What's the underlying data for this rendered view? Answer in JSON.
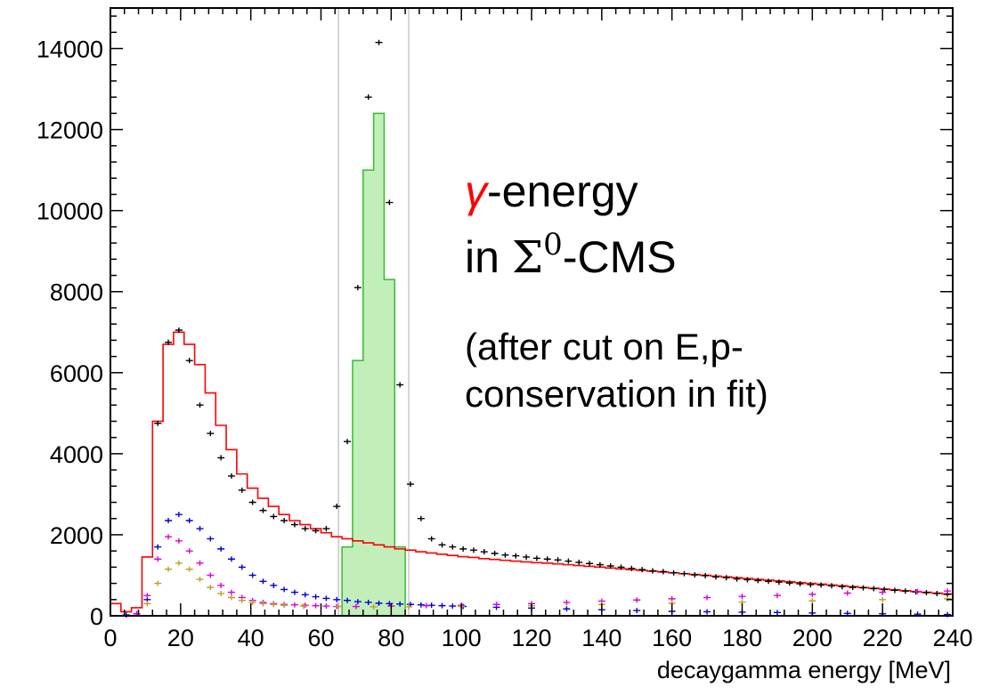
{
  "chart_data": {
    "type": "histogram",
    "xlabel": "decaygamma energy [MeV]",
    "ylabel": "",
    "xlim": [
      0,
      240
    ],
    "ylim": [
      0,
      15000
    ],
    "x_ticks": [
      0,
      20,
      40,
      60,
      80,
      100,
      120,
      140,
      160,
      180,
      200,
      220,
      240
    ],
    "y_ticks": [
      0,
      2000,
      4000,
      6000,
      8000,
      10000,
      12000,
      14000
    ],
    "y_tick_labels": [
      "0",
      "2000",
      "4000",
      "6000",
      "8000",
      "10000",
      "12000",
      "14000"
    ],
    "bin_width": 3,
    "grid": false,
    "cut_lines_x": [
      65,
      85
    ],
    "annotations": {
      "line1_symbol": "γ",
      "line1_text": "-energy",
      "line2_prefix": "in ",
      "line2_sigma": "Σ",
      "line2_sup": "0",
      "line2_suffix": "-CMS",
      "line3": "(after cut on E,p-",
      "line4": "conservation in fit)"
    },
    "colors": {
      "data_points": "#000000",
      "total": "#ff0000",
      "signal_fill": "#aee8a2",
      "signal_line": "#2fbf2f",
      "blue": "#0000dd",
      "magenta": "#dd00dd",
      "olive": "#bfa020",
      "cut_lines": "#c8c8c8",
      "annotation_symbol": "#ff0000"
    },
    "series": [
      {
        "name": "",
        "kind": "points",
        "color": "#000000",
        "x": [
          13.5,
          16.5,
          19.5,
          22.5,
          25.5,
          28.5,
          31.5,
          34.5,
          37.5,
          40.5,
          43.5,
          46.5,
          49.5,
          52.5,
          55.5,
          58.5,
          61.5,
          64.5,
          67.5,
          70.5,
          73.5,
          76.5,
          79.5,
          82.5,
          85.5,
          88.5,
          91.5,
          94.5,
          97.5,
          100.5,
          103.5,
          106.5,
          109.5,
          112.5,
          115.5,
          118.5,
          121.5,
          124.5,
          127.5,
          130.5,
          133.5,
          136.5,
          139.5,
          142.5,
          145.5,
          148.5,
          151.5,
          154.5,
          157.5,
          160.5,
          163.5,
          166.5,
          169.5,
          172.5,
          175.5,
          178.5,
          181.5,
          184.5,
          187.5,
          190.5,
          193.5,
          196.5,
          199.5,
          202.5,
          205.5,
          208.5,
          211.5,
          214.5,
          217.5,
          220.5,
          223.5,
          226.5,
          229.5,
          232.5,
          235.5,
          238.5
        ],
        "y": [
          4750,
          6750,
          7050,
          6300,
          5200,
          4500,
          3900,
          3450,
          3100,
          2800,
          2600,
          2450,
          2350,
          2250,
          2150,
          2100,
          2150,
          2700,
          4300,
          8100,
          12800,
          14150,
          10200,
          5700,
          3250,
          2400,
          1900,
          1750,
          1700,
          1650,
          1620,
          1580,
          1540,
          1500,
          1480,
          1450,
          1420,
          1400,
          1380,
          1350,
          1320,
          1290,
          1260,
          1230,
          1200,
          1170,
          1140,
          1110,
          1090,
          1060,
          1040,
          1010,
          990,
          960,
          940,
          910,
          890,
          870,
          850,
          830,
          810,
          790,
          770,
          760,
          740,
          720,
          700,
          690,
          670,
          650,
          630,
          610,
          590,
          570,
          550,
          530
        ]
      },
      {
        "name": "",
        "kind": "step",
        "color": "#ff0000",
        "x": [
          1.5,
          4.5,
          7.5,
          10.5,
          13.5,
          16.5,
          19.5,
          22.5,
          25.5,
          28.5,
          31.5,
          34.5,
          37.5,
          40.5,
          43.5,
          46.5,
          49.5,
          52.5,
          55.5,
          58.5,
          61.5,
          64.5,
          67.5,
          70.5,
          73.5,
          76.5,
          79.5,
          82.5,
          85.5,
          88.5,
          91.5,
          94.5,
          97.5,
          100.5,
          103.5,
          106.5,
          109.5,
          112.5,
          115.5,
          118.5,
          121.5,
          124.5,
          127.5,
          130.5,
          133.5,
          136.5,
          139.5,
          142.5,
          145.5,
          148.5,
          151.5,
          154.5,
          157.5,
          160.5,
          163.5,
          166.5,
          169.5,
          172.5,
          175.5,
          178.5,
          181.5,
          184.5,
          187.5,
          190.5,
          193.5,
          196.5,
          199.5,
          202.5,
          205.5,
          208.5,
          211.5,
          214.5,
          217.5,
          220.5,
          223.5,
          226.5,
          229.5,
          232.5,
          235.5,
          238.5
        ],
        "y": [
          300,
          100,
          200,
          1450,
          4800,
          6700,
          7000,
          6700,
          6200,
          5500,
          4700,
          4100,
          3500,
          3150,
          2900,
          2700,
          2500,
          2350,
          2250,
          2150,
          2050,
          1950,
          1900,
          1850,
          1800,
          1750,
          1700,
          1650,
          1620,
          1580,
          1550,
          1520,
          1490,
          1460,
          1440,
          1410,
          1390,
          1370,
          1350,
          1330,
          1310,
          1300,
          1280,
          1260,
          1240,
          1220,
          1200,
          1180,
          1160,
          1140,
          1120,
          1100,
          1080,
          1060,
          1040,
          1020,
          1000,
          980,
          960,
          940,
          920,
          900,
          880,
          860,
          840,
          820,
          800,
          780,
          760,
          740,
          720,
          700,
          680,
          660,
          640,
          620,
          600,
          580,
          560,
          540
        ]
      },
      {
        "name": "",
        "kind": "filled_step",
        "color": "#2fbf2f",
        "x": [
          64.5,
          67.5,
          70.5,
          73.5,
          76.5,
          79.5,
          82.5
        ],
        "y": [
          0,
          1700,
          6300,
          11000,
          12400,
          8300,
          1700
        ]
      },
      {
        "name": "",
        "kind": "points",
        "color": "#0000dd",
        "x": [
          4.5,
          7.5,
          10.5,
          13.5,
          16.5,
          19.5,
          22.5,
          25.5,
          28.5,
          31.5,
          34.5,
          37.5,
          40.5,
          43.5,
          46.5,
          49.5,
          52.5,
          55.5,
          58.5,
          61.5,
          64.5,
          67.5,
          70.5,
          73.5,
          76.5,
          79.5,
          82.5,
          85.5,
          88.5,
          91.5,
          94.5,
          97.5,
          100.5,
          110,
          120,
          130,
          140,
          150,
          160,
          170,
          180,
          190,
          200,
          210,
          220,
          230,
          238.5
        ],
        "y": [
          20,
          50,
          400,
          1700,
          2350,
          2500,
          2350,
          2150,
          1900,
          1650,
          1400,
          1200,
          1000,
          850,
          750,
          650,
          580,
          520,
          470,
          430,
          400,
          380,
          350,
          330,
          310,
          300,
          290,
          280,
          270,
          260,
          250,
          240,
          230,
          210,
          190,
          170,
          150,
          130,
          110,
          100,
          90,
          80,
          70,
          60,
          50,
          40,
          30
        ]
      },
      {
        "name": "",
        "kind": "points",
        "color": "#dd00dd",
        "x": [
          7.5,
          10.5,
          13.5,
          16.5,
          19.5,
          22.5,
          25.5,
          28.5,
          31.5,
          34.5,
          37.5,
          40.5,
          43.5,
          46.5,
          49.5,
          52.5,
          55.5,
          58.5,
          61.5,
          64.5,
          70,
          80,
          90,
          100,
          110,
          120,
          130,
          140,
          150,
          160,
          170,
          180,
          190,
          200,
          210,
          220,
          230,
          238.5
        ],
        "y": [
          50,
          500,
          1400,
          1950,
          1850,
          1600,
          1300,
          1000,
          750,
          580,
          450,
          380,
          330,
          300,
          280,
          270,
          260,
          250,
          240,
          230,
          230,
          240,
          250,
          260,
          280,
          300,
          330,
          360,
          390,
          420,
          450,
          480,
          500,
          530,
          560,
          580,
          600,
          610
        ]
      },
      {
        "name": "",
        "kind": "points",
        "color": "#bfa020",
        "x": [
          10.5,
          13.5,
          16.5,
          19.5,
          22.5,
          25.5,
          28.5,
          31.5,
          34.5,
          37.5,
          40.5,
          43.5,
          46.5,
          49.5,
          55,
          65,
          75,
          85,
          100,
          120,
          140,
          160,
          180,
          200,
          220,
          238.5
        ],
        "y": [
          300,
          800,
          1150,
          1300,
          1150,
          900,
          700,
          550,
          450,
          380,
          330,
          300,
          280,
          260,
          240,
          230,
          220,
          220,
          230,
          250,
          280,
          310,
          340,
          370,
          400,
          420
        ]
      }
    ]
  }
}
